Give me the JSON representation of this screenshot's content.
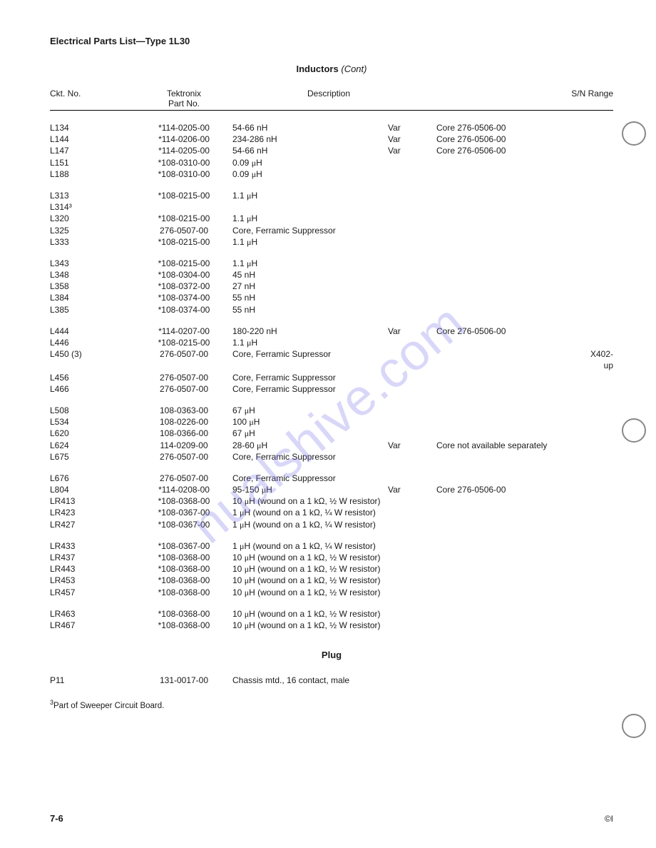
{
  "page": {
    "header": "Electrical Parts List—Type 1L30",
    "section_title": "Inductors",
    "section_cont": "(Cont)",
    "plug_title": "Plug",
    "footnote": "Part of Sweeper Circuit Board.",
    "footnote_marker": "3",
    "page_number": "7-6",
    "copy_mark": "©I",
    "watermark": "nualshive.com"
  },
  "columns": {
    "ckt": "Ckt. No.",
    "part_top": "Tektronix",
    "part": "Part No.",
    "desc": "Description",
    "sn": "S/N Range"
  },
  "groups": [
    [
      {
        "ckt": "L134",
        "part": "*114-0205-00",
        "desc": "54-66 nH",
        "var": "Var",
        "core": "Core 276-0506-00",
        "sn": ""
      },
      {
        "ckt": "L144",
        "part": "*114-0206-00",
        "desc": "234-286 nH",
        "var": "Var",
        "core": "Core 276-0506-00",
        "sn": ""
      },
      {
        "ckt": "L147",
        "part": "*114-0205-00",
        "desc": "54-66 nH",
        "var": "Var",
        "core": "Core 276-0506-00",
        "sn": ""
      },
      {
        "ckt": "L151",
        "part": "*108-0310-00",
        "desc": "0.09 μH",
        "var": "",
        "core": "",
        "sn": ""
      },
      {
        "ckt": "L188",
        "part": "*108-0310-00",
        "desc": "0.09 μH",
        "var": "",
        "core": "",
        "sn": ""
      }
    ],
    [
      {
        "ckt": "L313",
        "part": "*108-0215-00",
        "desc": "1.1 μH",
        "var": "",
        "core": "",
        "sn": ""
      },
      {
        "ckt": "L314³",
        "part": "",
        "desc": "",
        "var": "",
        "core": "",
        "sn": ""
      },
      {
        "ckt": "L320",
        "part": "*108-0215-00",
        "desc": "1.1 μH",
        "var": "",
        "core": "",
        "sn": ""
      },
      {
        "ckt": "L325",
        "part": "276-0507-00",
        "desc": "Core, Ferramic Suppressor",
        "var": "",
        "core": "",
        "sn": ""
      },
      {
        "ckt": "L333",
        "part": "*108-0215-00",
        "desc": "1.1 μH",
        "var": "",
        "core": "",
        "sn": ""
      }
    ],
    [
      {
        "ckt": "L343",
        "part": "*108-0215-00",
        "desc": "1.1 μH",
        "var": "",
        "core": "",
        "sn": ""
      },
      {
        "ckt": "L348",
        "part": "*108-0304-00",
        "desc": "45 nH",
        "var": "",
        "core": "",
        "sn": ""
      },
      {
        "ckt": "L358",
        "part": "*108-0372-00",
        "desc": "27 nH",
        "var": "",
        "core": "",
        "sn": ""
      },
      {
        "ckt": "L384",
        "part": "*108-0374-00",
        "desc": "55 nH",
        "var": "",
        "core": "",
        "sn": ""
      },
      {
        "ckt": "L385",
        "part": "*108-0374-00",
        "desc": "55 nH",
        "var": "",
        "core": "",
        "sn": ""
      }
    ],
    [
      {
        "ckt": "L444",
        "part": "*114-0207-00",
        "desc": "180-220 nH",
        "var": "Var",
        "core": "Core 276-0506-00",
        "sn": ""
      },
      {
        "ckt": "L446",
        "part": "*108-0215-00",
        "desc": "1.1 μH",
        "var": "",
        "core": "",
        "sn": ""
      },
      {
        "ckt": "L450 (3)",
        "part": "276-0507-00",
        "desc": "Core, Ferramic Supressor",
        "var": "",
        "core": "",
        "sn": "X402-up"
      },
      {
        "ckt": "L456",
        "part": "276-0507-00",
        "desc": "Core, Ferramic Suppressor",
        "var": "",
        "core": "",
        "sn": ""
      },
      {
        "ckt": "L466",
        "part": "276-0507-00",
        "desc": "Core, Ferramic Suppressor",
        "var": "",
        "core": "",
        "sn": ""
      }
    ],
    [
      {
        "ckt": "L508",
        "part": "108-0363-00",
        "desc": "67 μH",
        "var": "",
        "core": "",
        "sn": ""
      },
      {
        "ckt": "L534",
        "part": "108-0226-00",
        "desc": "100 μH",
        "var": "",
        "core": "",
        "sn": ""
      },
      {
        "ckt": "L620",
        "part": "108-0366-00",
        "desc": "67 μH",
        "var": "",
        "core": "",
        "sn": ""
      },
      {
        "ckt": "L624",
        "part": "114-0209-00",
        "desc": "28-60 μH",
        "var": "Var",
        "core": "Core not available separately",
        "sn": ""
      },
      {
        "ckt": "L675",
        "part": "276-0507-00",
        "desc": "Core, Ferramic Suppressor",
        "var": "",
        "core": "",
        "sn": ""
      }
    ],
    [
      {
        "ckt": "L676",
        "part": "276-0507-00",
        "desc": "Core, Ferramic Suppressor",
        "var": "",
        "core": "",
        "sn": ""
      },
      {
        "ckt": "L804",
        "part": "*114-0208-00",
        "desc": "95-150 μH",
        "var": "Var",
        "core": "Core 276-0506-00",
        "sn": ""
      },
      {
        "ckt": "LR413",
        "part": "*108-0368-00",
        "desc": "10 μH (wound on a 1 kΩ, ½ W resistor)",
        "var": "",
        "core": "",
        "sn": ""
      },
      {
        "ckt": "LR423",
        "part": "*108-0367-00",
        "desc": "1 μH (wound on a 1 kΩ, ¼ W resistor)",
        "var": "",
        "core": "",
        "sn": ""
      },
      {
        "ckt": "LR427",
        "part": "*108-0367-00",
        "desc": "1 μH (wound on a 1 kΩ, ¼ W resistor)",
        "var": "",
        "core": "",
        "sn": ""
      }
    ],
    [
      {
        "ckt": "LR433",
        "part": "*108-0367-00",
        "desc": "1 μH (wound on a 1 kΩ, ¼ W resistor)",
        "var": "",
        "core": "",
        "sn": ""
      },
      {
        "ckt": "LR437",
        "part": "*108-0368-00",
        "desc": "10 μH (wound on a 1 kΩ, ½ W resistor)",
        "var": "",
        "core": "",
        "sn": ""
      },
      {
        "ckt": "LR443",
        "part": "*108-0368-00",
        "desc": "10 μH (wound on a 1 kΩ, ½ W resistor)",
        "var": "",
        "core": "",
        "sn": ""
      },
      {
        "ckt": "LR453",
        "part": "*108-0368-00",
        "desc": "10 μH (wound on a 1 kΩ, ½ W resistor)",
        "var": "",
        "core": "",
        "sn": ""
      },
      {
        "ckt": "LR457",
        "part": "*108-0368-00",
        "desc": "10 μH (wound on a 1 kΩ, ½ W resistor)",
        "var": "",
        "core": "",
        "sn": ""
      }
    ],
    [
      {
        "ckt": "LR463",
        "part": "*108-0368-00",
        "desc": "10 μH (wound on a 1 kΩ, ½ W resistor)",
        "var": "",
        "core": "",
        "sn": ""
      },
      {
        "ckt": "LR467",
        "part": "*108-0368-00",
        "desc": "10 μH (wound on a 1 kΩ, ½ W resistor)",
        "var": "",
        "core": "",
        "sn": ""
      }
    ]
  ],
  "plug_rows": [
    {
      "ckt": "P11",
      "part": "131-0017-00",
      "desc": "Chassis mtd., 16 contact, male",
      "var": "",
      "core": "",
      "sn": ""
    }
  ]
}
